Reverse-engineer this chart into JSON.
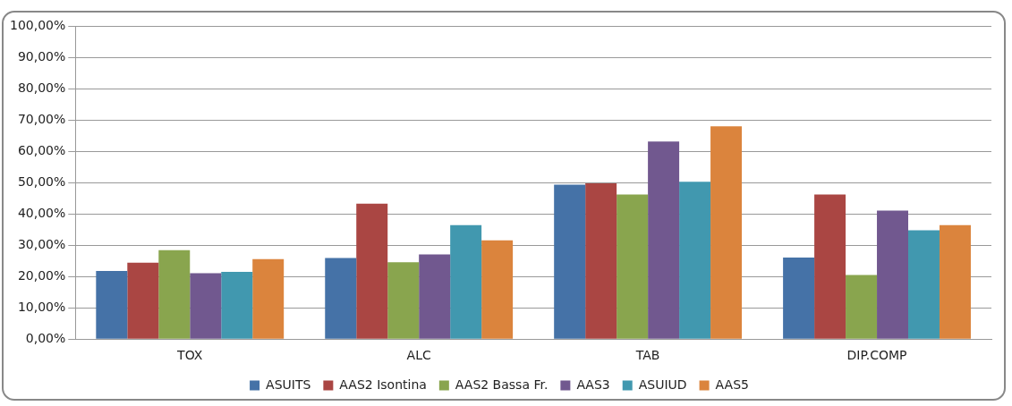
{
  "chart_data": {
    "type": "bar",
    "categories": [
      "TOX",
      "ALC",
      "TAB",
      "DIP.COMP"
    ],
    "series": [
      {
        "name": "ASUITS",
        "color": "#4572a7",
        "values": [
          21.8,
          25.9,
          49.4,
          26.1
        ]
      },
      {
        "name": "AAS2 Isontina",
        "color": "#aa4643",
        "values": [
          24.4,
          43.3,
          49.8,
          46.2
        ]
      },
      {
        "name": "AAS2 Bassa Fr.",
        "color": "#89a54e",
        "values": [
          28.4,
          24.6,
          46.2,
          20.5
        ]
      },
      {
        "name": "AAS3",
        "color": "#71588f",
        "values": [
          21.1,
          27.1,
          63.2,
          41.1
        ]
      },
      {
        "name": "ASUIUD",
        "color": "#4198af",
        "values": [
          21.5,
          36.4,
          50.3,
          34.8
        ]
      },
      {
        "name": "AAS5",
        "color": "#db843d",
        "values": [
          25.6,
          31.6,
          68.0,
          36.4
        ]
      }
    ],
    "ylim": [
      0,
      100
    ],
    "yticks": [
      {
        "value": 0,
        "label": "0,00%"
      },
      {
        "value": 10,
        "label": "10,00%"
      },
      {
        "value": 20,
        "label": "20,00%"
      },
      {
        "value": 30,
        "label": "30,00%"
      },
      {
        "value": 40,
        "label": "40,00%"
      },
      {
        "value": 50,
        "label": "50,00%"
      },
      {
        "value": 60,
        "label": "60,00%"
      },
      {
        "value": 70,
        "label": "70,00%"
      },
      {
        "value": 80,
        "label": "80,00%"
      },
      {
        "value": 90,
        "label": "90,00%"
      },
      {
        "value": 100,
        "label": "100,00%"
      }
    ],
    "grid": "y",
    "legend": "bottom"
  }
}
